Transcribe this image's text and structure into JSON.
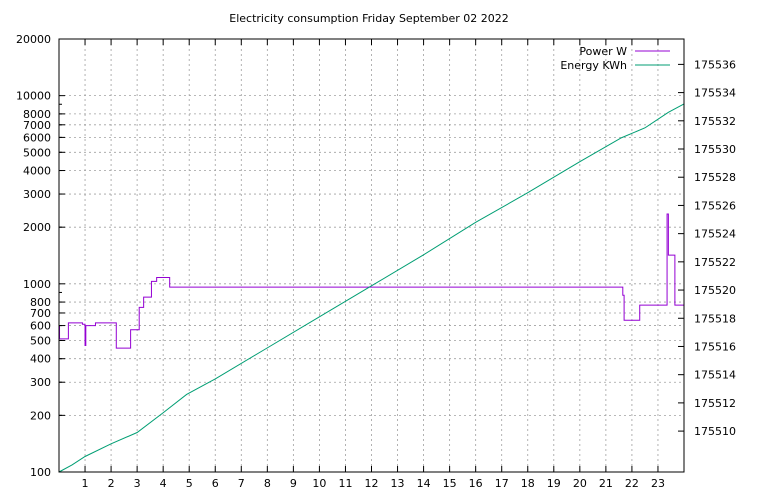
{
  "chart_data": {
    "type": "line",
    "title": "Electricity consumption Friday September 02 2022",
    "xlabel": "",
    "ylabel": "",
    "y2label": "",
    "grid": true,
    "legend_position": "top-right",
    "x_range": [
      0,
      24
    ],
    "x_ticks": [
      1,
      2,
      3,
      4,
      5,
      6,
      7,
      8,
      9,
      10,
      11,
      12,
      13,
      14,
      15,
      16,
      17,
      18,
      19,
      20,
      21,
      22,
      23
    ],
    "y_scale": "log",
    "y_range": [
      100,
      20000
    ],
    "y_ticks": [
      100,
      200,
      300,
      400,
      500,
      600,
      700,
      800,
      1000,
      2000,
      3000,
      4000,
      5000,
      6000,
      7000,
      8000,
      10000,
      20000
    ],
    "y2_range": [
      175507.1,
      175537.8
    ],
    "y2_ticks": [
      175510,
      175512,
      175514,
      175516,
      175518,
      175520,
      175522,
      175524,
      175526,
      175528,
      175530,
      175532,
      175534,
      175536
    ],
    "series": [
      {
        "name": "Power W",
        "color": "#9400d3",
        "axis": "y",
        "step": true,
        "points": [
          [
            0,
            600
          ],
          [
            0.02,
            510
          ],
          [
            0.3,
            510
          ],
          [
            0.36,
            620
          ],
          [
            0.9,
            610
          ],
          [
            0.98,
            610
          ],
          [
            1.0,
            470
          ],
          [
            1.03,
            600
          ],
          [
            1.4,
            620
          ],
          [
            2.0,
            620
          ],
          [
            2.2,
            455
          ],
          [
            2.7,
            455
          ],
          [
            2.75,
            570
          ],
          [
            3.05,
            570
          ],
          [
            3.08,
            750
          ],
          [
            3.25,
            850
          ],
          [
            3.55,
            1030
          ],
          [
            3.75,
            1080
          ],
          [
            4.25,
            960
          ],
          [
            21.6,
            960
          ],
          [
            21.65,
            870
          ],
          [
            21.7,
            640
          ],
          [
            22.25,
            640
          ],
          [
            22.3,
            770
          ],
          [
            23.3,
            770
          ],
          [
            23.35,
            2350
          ],
          [
            23.4,
            1420
          ],
          [
            23.6,
            1420
          ],
          [
            23.65,
            770
          ],
          [
            24.0,
            770
          ]
        ]
      },
      {
        "name": "Energy KWh",
        "color": "#009e73",
        "axis": "y2",
        "step": false,
        "points": [
          [
            0,
            175507.1
          ],
          [
            0.5,
            175507.6
          ],
          [
            1,
            175508.2
          ],
          [
            2,
            175509.1
          ],
          [
            3,
            175509.9
          ],
          [
            4,
            175511.3
          ],
          [
            4.9,
            175512.6
          ],
          [
            6,
            175513.7
          ],
          [
            8,
            175515.9
          ],
          [
            10,
            175518.1
          ],
          [
            12,
            175520.3
          ],
          [
            14,
            175522.5
          ],
          [
            16,
            175524.8
          ],
          [
            18,
            175526.9
          ],
          [
            20,
            175529.1
          ],
          [
            21.6,
            175530.8
          ],
          [
            22.5,
            175531.5
          ],
          [
            23.4,
            175532.6
          ],
          [
            24,
            175533.2
          ]
        ]
      }
    ]
  }
}
